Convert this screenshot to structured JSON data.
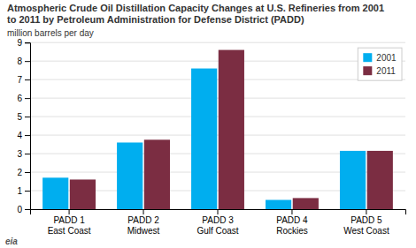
{
  "chart_data": {
    "type": "bar",
    "title": "Atmospheric Crude Oil Distillation Capacity Changes at U.S. Refineries from 2001\nto 2011 by Petroleum Administration for Defense District (PADD)",
    "ylabel": "million barrels per day",
    "annotation": "eia",
    "categories": [
      "PADD 1\nEast Coast",
      "PADD 2\nMidwest",
      "PADD 3\nGulf Coast",
      "PADD 4\nRockies",
      "PADD 5\nWest Coast"
    ],
    "series": [
      {
        "name": "2001",
        "color": "#00AEEF",
        "values": [
          1.7,
          3.6,
          7.6,
          0.5,
          3.15
        ]
      },
      {
        "name": "2011",
        "color": "#7B2D42",
        "values": [
          1.6,
          3.75,
          8.6,
          0.6,
          3.15
        ]
      }
    ],
    "ylim": [
      0,
      9
    ],
    "yticks": [
      0,
      1,
      2,
      3,
      4,
      5,
      6,
      7,
      8,
      9
    ],
    "grid": true,
    "legend": "upper right"
  }
}
